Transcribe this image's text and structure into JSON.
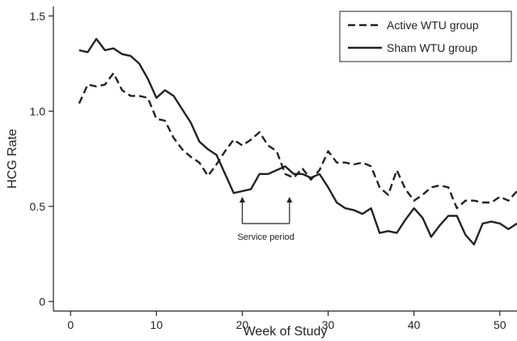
{
  "chart_data": {
    "type": "line",
    "title": "",
    "xlabel": "Week of Study",
    "ylabel": "HCG Rate",
    "xlim": [
      -2,
      52
    ],
    "ylim": [
      -0.05,
      1.55
    ],
    "xticks": [
      0,
      10,
      20,
      30,
      40,
      50
    ],
    "yticks": [
      0,
      0.5,
      1.0,
      1.5
    ],
    "xtick_labels": [
      "0",
      "10",
      "20",
      "30",
      "40",
      "50"
    ],
    "ytick_labels": [
      "0",
      "0.5",
      "1.0",
      "1.5"
    ],
    "grid": false,
    "legend_position": "top-right",
    "series": [
      {
        "name": "Active WTU group",
        "style": "dashed",
        "color": "#222222",
        "x": [
          1,
          2,
          3,
          4,
          5,
          6,
          7,
          8,
          9,
          10,
          11,
          12,
          13,
          14,
          15,
          16,
          17,
          18,
          19,
          20,
          21,
          22,
          23,
          24,
          25,
          26,
          27,
          28,
          29,
          30,
          31,
          32,
          33,
          34,
          35,
          36,
          37,
          38,
          39,
          40,
          41,
          42,
          43,
          44,
          45,
          46,
          47,
          48,
          49,
          50,
          51,
          52
        ],
        "y": [
          1.04,
          1.14,
          1.13,
          1.14,
          1.2,
          1.11,
          1.08,
          1.08,
          1.07,
          0.96,
          0.95,
          0.86,
          0.8,
          0.76,
          0.73,
          0.66,
          0.72,
          0.79,
          0.85,
          0.82,
          0.85,
          0.89,
          0.82,
          0.79,
          0.67,
          0.65,
          0.7,
          0.64,
          0.69,
          0.79,
          0.73,
          0.73,
          0.72,
          0.73,
          0.71,
          0.6,
          0.56,
          0.69,
          0.59,
          0.53,
          0.56,
          0.6,
          0.61,
          0.6,
          0.49,
          0.53,
          0.53,
          0.52,
          0.52,
          0.55,
          0.53,
          0.58
        ]
      },
      {
        "name": "Sham WTU group",
        "style": "solid",
        "color": "#222222",
        "x": [
          1,
          2,
          3,
          4,
          5,
          6,
          7,
          8,
          9,
          10,
          11,
          12,
          13,
          14,
          15,
          16,
          17,
          18,
          19,
          20,
          21,
          22,
          23,
          24,
          25,
          26,
          27,
          28,
          29,
          30,
          31,
          32,
          33,
          34,
          35,
          36,
          37,
          38,
          39,
          40,
          41,
          42,
          43,
          44,
          45,
          46,
          47,
          48,
          49,
          50,
          51,
          52
        ],
        "y": [
          1.32,
          1.31,
          1.38,
          1.32,
          1.33,
          1.3,
          1.29,
          1.25,
          1.17,
          1.07,
          1.11,
          1.08,
          1.01,
          0.94,
          0.84,
          0.8,
          0.77,
          0.67,
          0.57,
          0.58,
          0.59,
          0.67,
          0.67,
          0.69,
          0.71,
          0.67,
          0.67,
          0.65,
          0.67,
          0.6,
          0.52,
          0.49,
          0.48,
          0.46,
          0.49,
          0.36,
          0.37,
          0.36,
          0.43,
          0.49,
          0.44,
          0.34,
          0.4,
          0.45,
          0.45,
          0.35,
          0.3,
          0.41,
          0.42,
          0.41,
          0.38,
          0.41
        ]
      }
    ],
    "annotations": [
      {
        "text": "Service period",
        "x_start": 20,
        "x_end": 25.5
      }
    ]
  }
}
